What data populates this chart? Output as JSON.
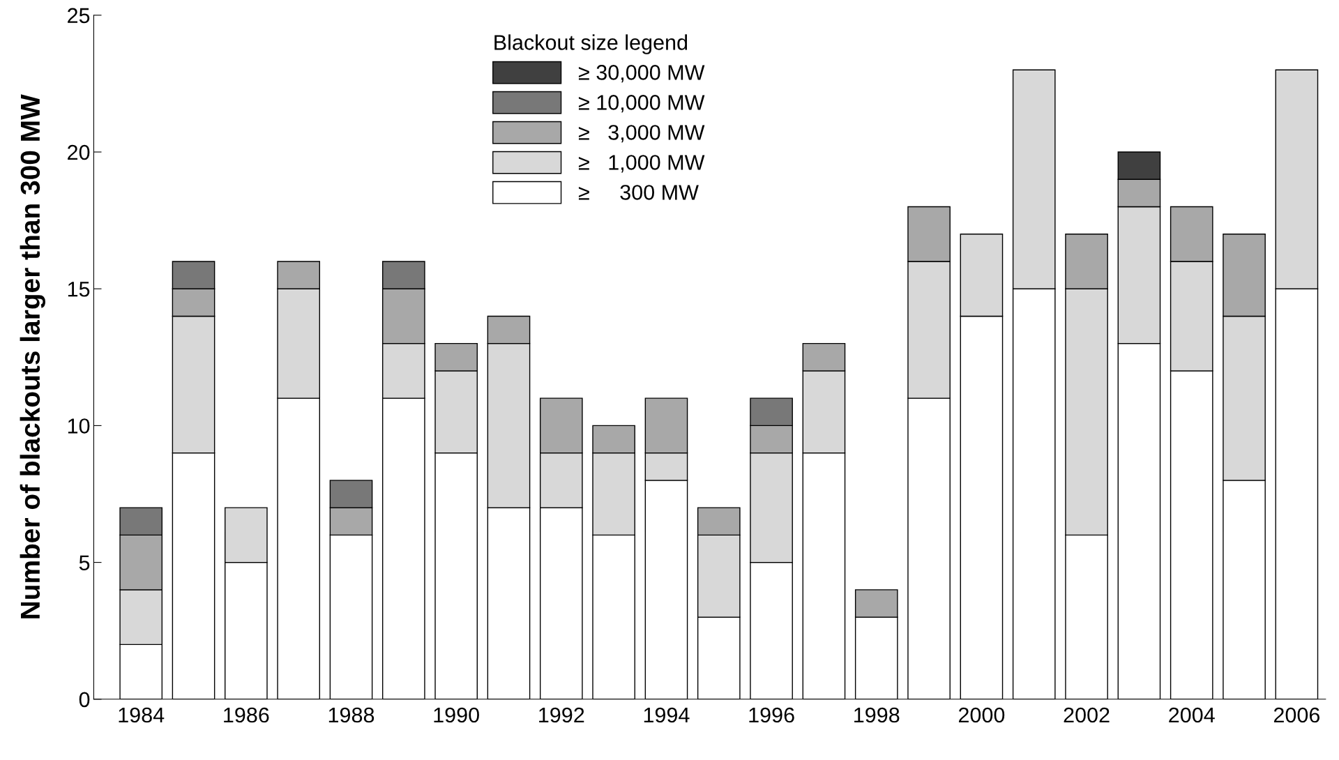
{
  "chart_data": {
    "type": "bar",
    "stacked": true,
    "ylabel": "Number of blackouts larger than 300 MW",
    "legend_title": "Blackout size legend",
    "legend": "top",
    "grid": false,
    "categories": [
      "1984",
      null,
      "1986",
      null,
      "1988",
      null,
      "1990",
      null,
      "1992",
      null,
      "1994",
      null,
      "1996",
      null,
      "1998",
      null,
      "2000",
      null,
      "2002",
      null,
      "2004",
      null,
      "2006"
    ],
    "ylim": [
      0,
      25
    ],
    "yticks": [
      0,
      5,
      10,
      15,
      20,
      25
    ],
    "series": [
      {
        "name": "≥     300 MW",
        "color": "#ffffff",
        "values": [
          2,
          9,
          5,
          11,
          6,
          11,
          9,
          7,
          7,
          6,
          8,
          3,
          5,
          9,
          3,
          11,
          14,
          15,
          6,
          13,
          12,
          8,
          15
        ]
      },
      {
        "name": "≥   1,000 MW",
        "color": "#d8d8d8",
        "values": [
          2,
          5,
          2,
          4,
          null,
          2,
          3,
          6,
          2,
          3,
          1,
          3,
          4,
          3,
          null,
          5,
          3,
          8,
          9,
          5,
          4,
          6,
          8
        ]
      },
      {
        "name": "≥   3,000 MW",
        "color": "#a8a8a8",
        "values": [
          2,
          1,
          null,
          1,
          1,
          2,
          1,
          1,
          2,
          1,
          2,
          1,
          1,
          1,
          1,
          2,
          null,
          null,
          2,
          1,
          2,
          3,
          null
        ]
      },
      {
        "name": "≥ 10,000 MW",
        "color": "#787878",
        "values": [
          1,
          1,
          null,
          null,
          1,
          1,
          null,
          null,
          null,
          null,
          null,
          null,
          1,
          null,
          null,
          null,
          null,
          null,
          null,
          null,
          null,
          null,
          null
        ]
      },
      {
        "name": "≥ 30,000 MW",
        "color": "#404040",
        "values": [
          null,
          null,
          null,
          null,
          null,
          null,
          null,
          null,
          null,
          null,
          null,
          null,
          null,
          null,
          null,
          null,
          null,
          null,
          null,
          1,
          null,
          null,
          null
        ]
      }
    ]
  }
}
